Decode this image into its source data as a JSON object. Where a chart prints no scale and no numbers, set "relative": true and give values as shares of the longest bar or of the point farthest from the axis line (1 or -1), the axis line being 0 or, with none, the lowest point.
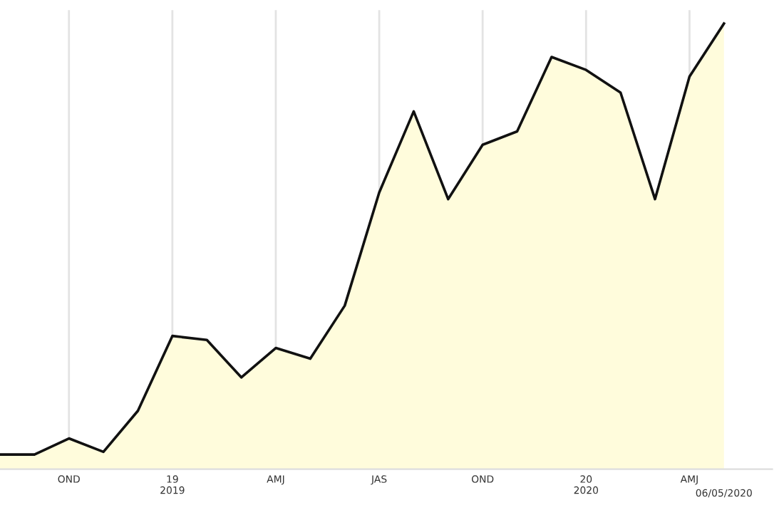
{
  "chart_data": {
    "type": "area",
    "relative": true,
    "grid": "x",
    "legend": false,
    "categories": [
      null,
      null,
      "OND",
      null,
      null,
      "19\n2019",
      null,
      null,
      "AMJ",
      null,
      null,
      "JAS",
      null,
      null,
      "OND",
      null,
      null,
      "20\n2020",
      null,
      null,
      "AMJ",
      "06/05/2020"
    ],
    "series": [
      {
        "color": "#fffcdc",
        "values": [
          0.033,
          0.033,
          0.069,
          0.039,
          0.131,
          0.299,
          0.29,
          0.206,
          0.272,
          0.248,
          0.367,
          0.621,
          0.803,
          0.606,
          0.728,
          0.758,
          0.925,
          0.896,
          0.845,
          0.606,
          0.881,
          1
        ]
      }
    ]
  }
}
